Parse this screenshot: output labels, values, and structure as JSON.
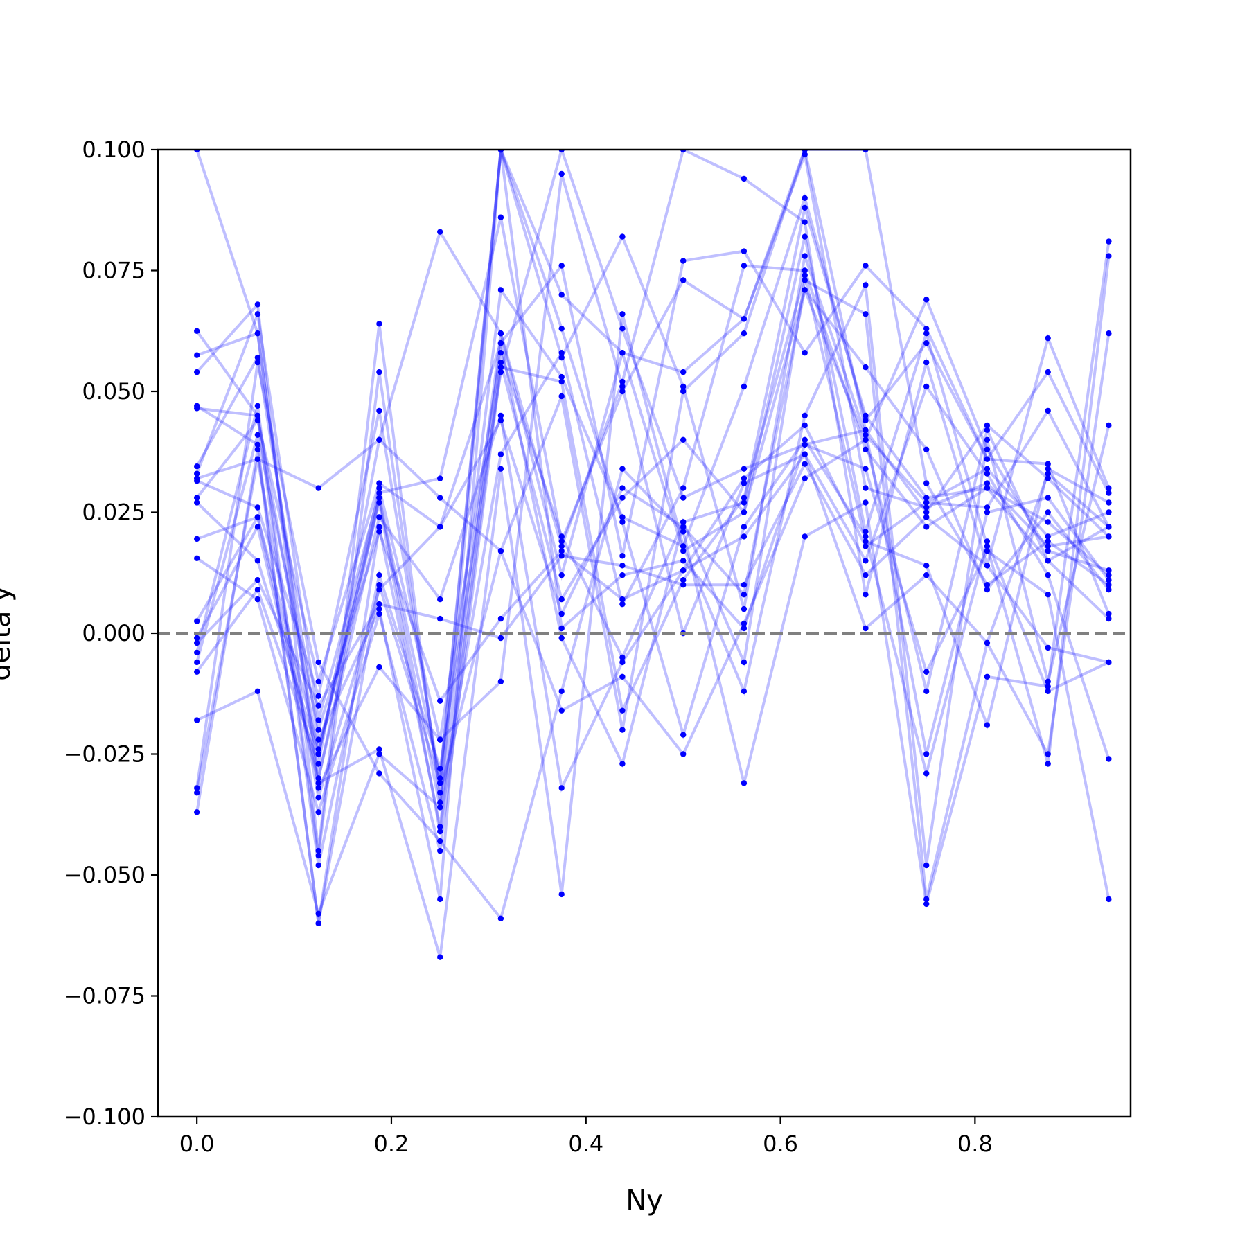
{
  "chart_data": {
    "type": "line",
    "title": "",
    "xlabel": "Ny",
    "ylabel": "delta y",
    "xlim": [
      -0.04,
      0.96
    ],
    "ylim": [
      -0.1,
      0.1
    ],
    "xticks": [
      0.0,
      0.2,
      0.4,
      0.6,
      0.8
    ],
    "xtick_labels": [
      "0.0",
      "0.2",
      "0.4",
      "0.6",
      "0.8"
    ],
    "yticks": [
      -0.1,
      -0.075,
      -0.05,
      -0.025,
      0.0,
      0.025,
      0.05,
      0.075,
      0.1
    ],
    "ytick_labels": [
      "−0.100",
      "−0.075",
      "−0.050",
      "−0.025",
      "0.000",
      "0.025",
      "0.050",
      "0.075",
      "0.100"
    ],
    "grid": false,
    "legend": "none",
    "colors": {
      "series": "#0000ff",
      "reference_line": "#808080"
    },
    "reference_line": {
      "y": 0.0,
      "style": "dashed"
    },
    "x": [
      0.0,
      0.0625,
      0.125,
      0.1875,
      0.25,
      0.3125,
      0.375,
      0.4375,
      0.5,
      0.5625,
      0.625,
      0.6875,
      0.75,
      0.8125,
      0.875,
      0.9375
    ],
    "series": [
      {
        "values": [
          0.0625,
          0.045,
          -0.025,
          0.03,
          -0.022,
          0.058,
          0.02,
          -0.005,
          0.023,
          0.027,
          0.088,
          0.045,
          0.028,
          0.03,
          0.015,
          0.022
        ]
      },
      {
        "values": [
          0.0575,
          0.062,
          -0.03,
          0.028,
          -0.03,
          0.1,
          0.057,
          0.082,
          0.051,
          0.005,
          0.078,
          0.041,
          0.027,
          0.034,
          0.02,
          0.025
        ]
      },
      {
        "values": [
          0.054,
          0.068,
          -0.045,
          0.064,
          -0.035,
          0.062,
          0.012,
          0.058,
          0.054,
          0.065,
          0.1,
          0.042,
          0.025,
          0.043,
          0.032,
          0.02
        ]
      },
      {
        "values": [
          0.047,
          0.039,
          -0.06,
          0.022,
          -0.04,
          0.06,
          0.076,
          0.016,
          0.077,
          0.079,
          0.058,
          0.076,
          0.063,
          0.036,
          0.054,
          0.029
        ]
      },
      {
        "values": [
          0.0465,
          0.045,
          -0.048,
          0.012,
          -0.028,
          0.054,
          0.1,
          0.063,
          0.028,
          0.034,
          0.039,
          0.042,
          -0.025,
          0.025,
          0.028,
          0.011
        ]
      },
      {
        "values": [
          0.0345,
          0.057,
          -0.022,
          0.005,
          -0.055,
          0.1,
          0.07,
          0.058,
          0.017,
          0.025,
          0.082,
          0.021,
          0.062,
          0.018,
          -0.027,
          0.078
        ]
      },
      {
        "values": [
          0.033,
          0.066,
          -0.018,
          0.029,
          0.032,
          0.086,
          0.019,
          0.05,
          0.073,
          0.065,
          0.099,
          0.03,
          0.026,
          0.031,
          0.018,
          0.02
        ]
      },
      {
        "values": [
          0.032,
          0.036,
          0.03,
          0.04,
          0.083,
          0.062,
          0.018,
          0.052,
          0.1,
          0.094,
          0.085,
          0.008,
          0.056,
          0.014,
          0.061,
          0.03
        ]
      },
      {
        "values": [
          0.0315,
          0.026,
          -0.013,
          0.046,
          -0.031,
          0.071,
          0.053,
          0.024,
          0.018,
          0.051,
          0.09,
          0.044,
          0.06,
          0.036,
          0.035,
          0.004
        ]
      },
      {
        "values": [
          0.028,
          0.044,
          -0.01,
          0.031,
          0.022,
          0.044,
          0.004,
          0.03,
          0.022,
          0.008,
          0.071,
          0.055,
          0.038,
          0.009,
          0.025,
          0.009
        ]
      },
      {
        "values": [
          0.027,
          0.015,
          -0.025,
          0.028,
          -0.036,
          0.037,
          0.058,
          0.006,
          0.03,
          0.076,
          0.075,
          0.038,
          0.022,
          0.03,
          0.023,
          0.012
        ]
      },
      {
        "values": [
          0.0195,
          0.024,
          -0.024,
          0.027,
          -0.041,
          0.056,
          0.007,
          0.028,
          0.04,
          0.025,
          0.071,
          0.04,
          0.069,
          0.038,
          0.017,
          0.013
        ]
      },
      {
        "values": [
          0.0155,
          0.007,
          -0.037,
          0.004,
          -0.045,
          0.055,
          0.052,
          -0.016,
          0.011,
          0.028,
          0.074,
          0.019,
          0.014,
          -0.019,
          0.034,
          0.027
        ]
      },
      {
        "values": [
          0.0025,
          0.024,
          -0.03,
          0.024,
          0.007,
          0.045,
          -0.032,
          -0.006,
          0.013,
          0.02,
          0.037,
          0.001,
          0.012,
          -0.002,
          0.033,
          0.022
        ]
      },
      {
        "values": [
          -0.001,
          0.022,
          -0.031,
          -0.024,
          -0.067,
          0.034,
          -0.054,
          0.066,
          0.018,
          -0.012,
          0.045,
          0.072,
          -0.048,
          0.04,
          -0.01,
          0.043
        ]
      },
      {
        "values": [
          -0.002,
          0.011,
          -0.015,
          0.006,
          0.003,
          -0.001,
          0.016,
          0.014,
          0.01,
          0.01,
          0.035,
          0.012,
          0.024,
          0.014,
          -0.003,
          -0.006
        ]
      },
      {
        "values": [
          -0.004,
          0.047,
          -0.046,
          0.054,
          -0.033,
          0.017,
          0.049,
          -0.02,
          0.05,
          0.062,
          0.1,
          0.1,
          0.031,
          0.01,
          0.019,
          0.01
        ]
      },
      {
        "values": [
          -0.006,
          0.041,
          -0.02,
          0.021,
          -0.014,
          0.003,
          0.017,
          0.007,
          0.013,
          0.032,
          0.043,
          0.018,
          0.027,
          0.026,
          0.046,
          0.022
        ]
      },
      {
        "values": [
          -0.008,
          0.009,
          -0.027,
          0.04,
          0.028,
          0.017,
          -0.016,
          -0.009,
          -0.025,
          0.002,
          0.032,
          0.04,
          -0.012,
          0.042,
          0.015,
          0.003
        ]
      },
      {
        "values": [
          -0.018,
          -0.012,
          -0.058,
          -0.025,
          -0.036,
          0.1,
          0.063,
          0.023,
          -0.021,
          0.022,
          0.04,
          0.02,
          -0.029,
          0.019,
          -0.012,
          -0.006
        ]
      },
      {
        "values": [
          -0.032,
          0.056,
          -0.006,
          -0.029,
          -0.043,
          -0.059,
          -0.012,
          0.034,
          0.021,
          -0.031,
          0.02,
          0.027,
          -0.056,
          -0.009,
          -0.011,
          0.081
        ]
      },
      {
        "values": [
          -0.033,
          0.036,
          -0.034,
          0.009,
          0.022,
          0.06,
          -0.001,
          -0.027,
          0.023,
          -0.006,
          0.073,
          0.066,
          -0.055,
          -0.002,
          -0.025,
          0.062
        ]
      },
      {
        "values": [
          -0.037,
          0.038,
          -0.06,
          0.01,
          -0.031,
          0.1,
          0.001,
          0.012,
          0.015,
          0.001,
          0.039,
          0.034,
          -0.008,
          0.017,
          0.008,
          -0.055
        ]
      },
      {
        "values": [
          0.1,
          0.062,
          -0.032,
          -0.007,
          -0.022,
          -0.01,
          0.095,
          0.051,
          0.0,
          0.031,
          0.037,
          0.015,
          0.051,
          0.033,
          0.012,
          -0.026
        ]
      }
    ]
  }
}
